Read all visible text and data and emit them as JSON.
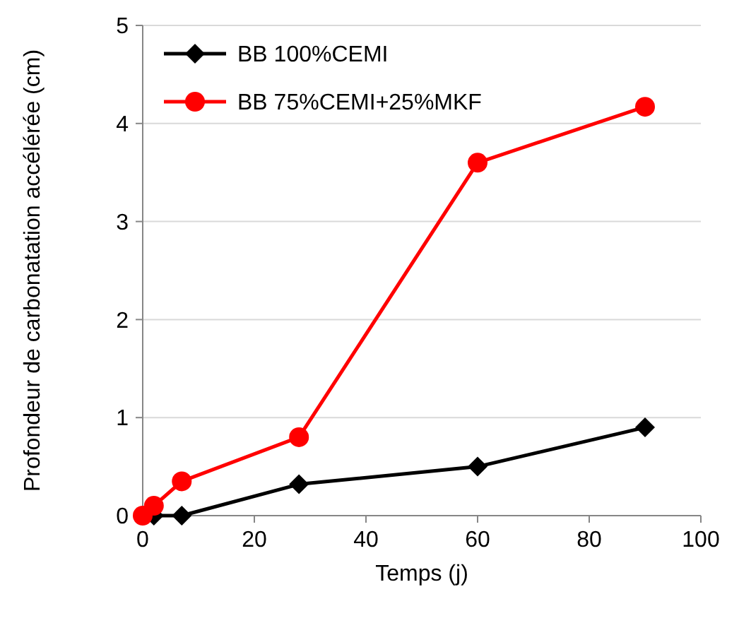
{
  "chart_data": {
    "type": "line",
    "xlabel": "Temps (j)",
    "ylabel": "Profondeur de carbonatation accélérée (cm)",
    "xlim": [
      0,
      100
    ],
    "xticks": [
      0,
      20,
      40,
      60,
      80,
      100
    ],
    "ylim": [
      0,
      5
    ],
    "yticks": [
      0,
      1,
      2,
      3,
      4,
      5
    ],
    "grid": "y",
    "legend": "top left",
    "series": [
      {
        "name": "BB 100%CEMI",
        "color": "#000000",
        "marker": "diamond",
        "x": [
          0,
          2,
          7,
          28,
          60,
          90
        ],
        "values": [
          0,
          0,
          0,
          0.32,
          0.5,
          0.9
        ]
      },
      {
        "name": "BB 75%CEMI+25%MKF",
        "color": "#ff0000",
        "marker": "circle",
        "x": [
          0,
          2,
          7,
          28,
          60,
          90
        ],
        "values": [
          0,
          0.1,
          0.35,
          0.8,
          3.6,
          4.17
        ]
      }
    ]
  }
}
